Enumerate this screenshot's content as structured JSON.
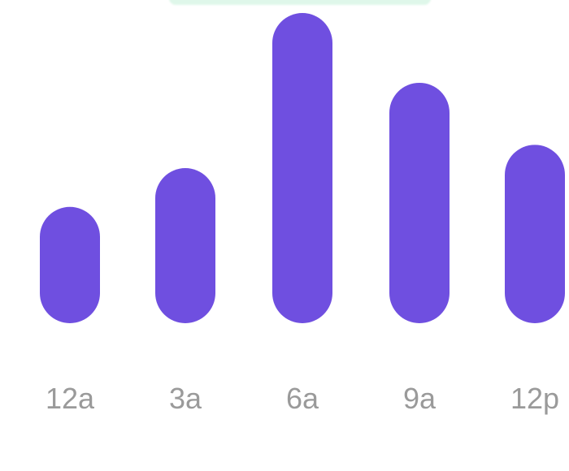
{
  "chart_data": {
    "type": "bar",
    "categories": [
      "12a",
      "3a",
      "6a",
      "9a",
      "12p"
    ],
    "values": [
      30,
      40,
      80,
      62,
      46
    ],
    "ylim": [
      0,
      80
    ],
    "grid": false,
    "bar_color": "#6f4fe0",
    "label_color": "#9a9a9a"
  }
}
